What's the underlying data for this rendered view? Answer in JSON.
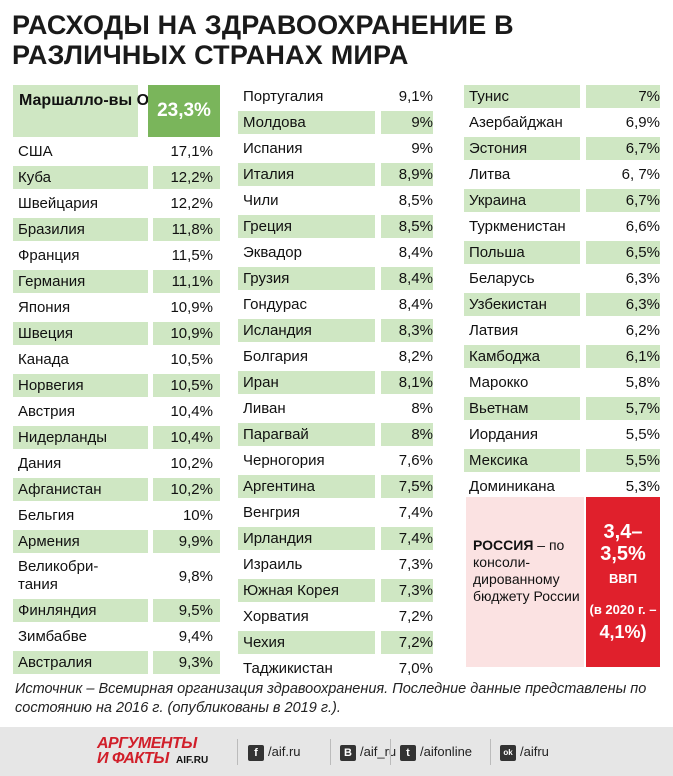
{
  "title": "РАСХОДЫ НА ЗДРАВООХРАНЕНИЕ В РАЗЛИЧНЫХ СТРАНАХ МИРА",
  "top": {
    "name": "Маршалло-вы Острова",
    "value": "23,3%"
  },
  "col1": [
    {
      "name": "США",
      "value": "17,1%",
      "green": false
    },
    {
      "name": "Куба",
      "value": "12,2%",
      "green": true
    },
    {
      "name": "Швейцария",
      "value": "12,2%",
      "green": false
    },
    {
      "name": "Бразилия",
      "value": "11,8%",
      "green": true
    },
    {
      "name": "Франция",
      "value": "11,5%",
      "green": false
    },
    {
      "name": "Германия",
      "value": "11,1%",
      "green": true
    },
    {
      "name": "Япония",
      "value": "10,9%",
      "green": false
    },
    {
      "name": "Швеция",
      "value": "10,9%",
      "green": true
    },
    {
      "name": "Канада",
      "value": "10,5%",
      "green": false
    },
    {
      "name": "Норвегия",
      "value": "10,5%",
      "green": true
    },
    {
      "name": "Австрия",
      "value": "10,4%",
      "green": false
    },
    {
      "name": "Нидерланды",
      "value": "10,4%",
      "green": true
    },
    {
      "name": "Дания",
      "value": "10,2%",
      "green": false
    },
    {
      "name": "Афганистан",
      "value": "10,2%",
      "green": true
    },
    {
      "name": "Бельгия",
      "value": "10%",
      "green": false
    },
    {
      "name": "Армения",
      "value": "9,9%",
      "green": true
    },
    {
      "name": "Великобри-\nтания",
      "value": "9,8%",
      "green": false,
      "tall": true
    },
    {
      "name": "Финляндия",
      "value": "9,5%",
      "green": true
    },
    {
      "name": "Зимбабве",
      "value": "9,4%",
      "green": false
    },
    {
      "name": "Австралия",
      "value": "9,3%",
      "green": true
    }
  ],
  "col2": [
    {
      "name": "Португалия",
      "value": "9,1%",
      "green": false
    },
    {
      "name": "Молдова",
      "value": "9%",
      "green": true
    },
    {
      "name": "Испания",
      "value": "9%",
      "green": false
    },
    {
      "name": "Италия",
      "value": "8,9%",
      "green": true
    },
    {
      "name": "Чили",
      "value": "8,5%",
      "green": false
    },
    {
      "name": "Греция",
      "value": "8,5%",
      "green": true
    },
    {
      "name": "Эквадор",
      "value": "8,4%",
      "green": false
    },
    {
      "name": "Грузия",
      "value": "8,4%",
      "green": true
    },
    {
      "name": "Гондурас",
      "value": "8,4%",
      "green": false
    },
    {
      "name": "Исландия",
      "value": "8,3%",
      "green": true
    },
    {
      "name": "Болгария",
      "value": "8,2%",
      "green": false
    },
    {
      "name": "Иран",
      "value": "8,1%",
      "green": true
    },
    {
      "name": "Ливан",
      "value": "8%",
      "green": false
    },
    {
      "name": "Парагвай",
      "value": "8%",
      "green": true
    },
    {
      "name": "Черногория",
      "value": "7,6%",
      "green": false
    },
    {
      "name": "Аргентина",
      "value": "7,5%",
      "green": true
    },
    {
      "name": "Венгрия",
      "value": "7,4%",
      "green": false
    },
    {
      "name": "Ирландия",
      "value": "7,4%",
      "green": true
    },
    {
      "name": "Израиль",
      "value": "7,3%",
      "green": false
    },
    {
      "name": "Южная Корея",
      "value": "7,3%",
      "green": true
    },
    {
      "name": "Хорватия",
      "value": "7,2%",
      "green": false
    },
    {
      "name": "Чехия",
      "value": "7,2%",
      "green": true
    },
    {
      "name": "Таджикистан",
      "value": "7,0%",
      "green": false
    }
  ],
  "col3": [
    {
      "name": "Тунис",
      "value": "7%",
      "green": true
    },
    {
      "name": "Азербайджан",
      "value": "6,9%",
      "green": false
    },
    {
      "name": "Эстония",
      "value": "6,7%",
      "green": true
    },
    {
      "name": "Литва",
      "value": "6, 7%",
      "green": false
    },
    {
      "name": "Украина",
      "value": "6,7%",
      "green": true
    },
    {
      "name": "Туркменистан",
      "value": "6,6%",
      "green": false
    },
    {
      "name": "Польша",
      "value": "6,5%",
      "green": true
    },
    {
      "name": "Беларусь",
      "value": "6,3%",
      "green": false
    },
    {
      "name": "Узбекистан",
      "value": "6,3%",
      "green": true
    },
    {
      "name": "Латвия",
      "value": "6,2%",
      "green": false
    },
    {
      "name": "Камбоджа",
      "value": "6,1%",
      "green": true
    },
    {
      "name": "Марокко",
      "value": "5,8%",
      "green": false
    },
    {
      "name": "Вьетнам",
      "value": "5,7%",
      "green": true
    },
    {
      "name": "Иордания",
      "value": "5,5%",
      "green": false
    },
    {
      "name": "Мексика",
      "value": "5,5%",
      "green": true
    },
    {
      "name": "Доминикана",
      "value": "5,3%",
      "green": false
    }
  ],
  "russia": {
    "label": "РОССИЯ",
    "text": " – по консоли-дированному бюджету России",
    "value": "3,4–3,5%",
    "unit": "ВВП",
    "sub": "(в 2020 г. –",
    "value2020": "4,1%)"
  },
  "source": "Источник – Всемирная организация здравоохранения. Последние данные представлены по состоянию на 2016 г. (опубликованы в 2019 г.).",
  "footer": {
    "logo1": "АРГУМЕНТЫ",
    "logo2": "И ФАКТЫ",
    "logo3": "AIF.RU",
    "social": [
      {
        "icon": "f",
        "label": "/aif.ru",
        "name": "facebook-icon"
      },
      {
        "icon": "В",
        "label": "/aif_ru",
        "name": "vk-icon"
      },
      {
        "icon": "t",
        "label": "/aifonline",
        "name": "twitter-icon"
      },
      {
        "icon": "ok",
        "label": "/aifru",
        "name": "odnoklassniki-icon"
      }
    ]
  }
}
